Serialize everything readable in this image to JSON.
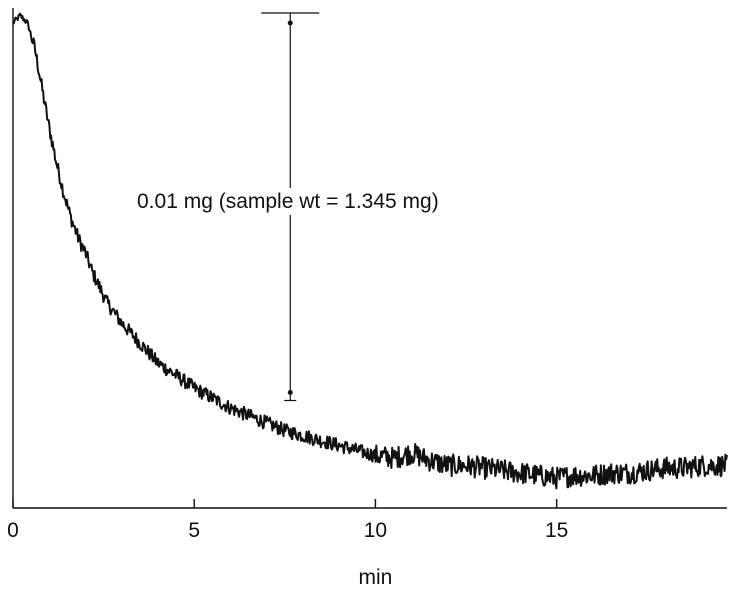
{
  "chart_data": {
    "type": "line",
    "title": "",
    "xlabel": "min",
    "ylabel": "",
    "xlim": [
      0,
      19.7
    ],
    "ylim": [
      0,
      1
    ],
    "x_ticks": [
      0,
      5,
      10,
      15
    ],
    "x_tick_labels": [
      "0",
      "5",
      "10",
      "15"
    ],
    "grid": false,
    "legend": "none",
    "annotation": "0.01 mg (sample wt = 1.345 mg)",
    "scale_bar": {
      "x": 7.65,
      "y_low": 0.215,
      "y_high": 0.99
    },
    "series": [
      {
        "x": [
          0,
          0.2,
          0.4,
          0.6,
          0.8,
          1.0,
          1.2,
          1.4,
          1.6,
          1.8,
          2.0,
          2.2,
          2.4,
          2.6,
          2.8,
          3.0,
          3.5,
          4.0,
          4.5,
          5.0,
          5.5,
          6.0,
          6.5,
          7.0,
          7.5,
          8.0,
          8.5,
          9.0,
          9.5,
          10.0,
          10.5,
          11.0,
          11.5,
          12.0,
          12.5,
          13.0,
          13.5,
          14.0,
          14.5,
          15.0,
          15.5,
          16.0,
          16.5,
          17.0,
          17.5,
          18.0,
          18.5,
          19.0,
          19.7
        ],
        "y": [
          0.97,
          0.985,
          0.97,
          0.92,
          0.84,
          0.76,
          0.69,
          0.63,
          0.58,
          0.54,
          0.51,
          0.47,
          0.44,
          0.41,
          0.39,
          0.37,
          0.33,
          0.29,
          0.265,
          0.24,
          0.22,
          0.2,
          0.185,
          0.17,
          0.155,
          0.145,
          0.135,
          0.125,
          0.115,
          0.105,
          0.1,
          0.11,
          0.095,
          0.085,
          0.085,
          0.08,
          0.075,
          0.07,
          0.065,
          0.06,
          0.065,
          0.065,
          0.07,
          0.07,
          0.075,
          0.08,
          0.08,
          0.085,
          0.085
        ]
      }
    ]
  }
}
